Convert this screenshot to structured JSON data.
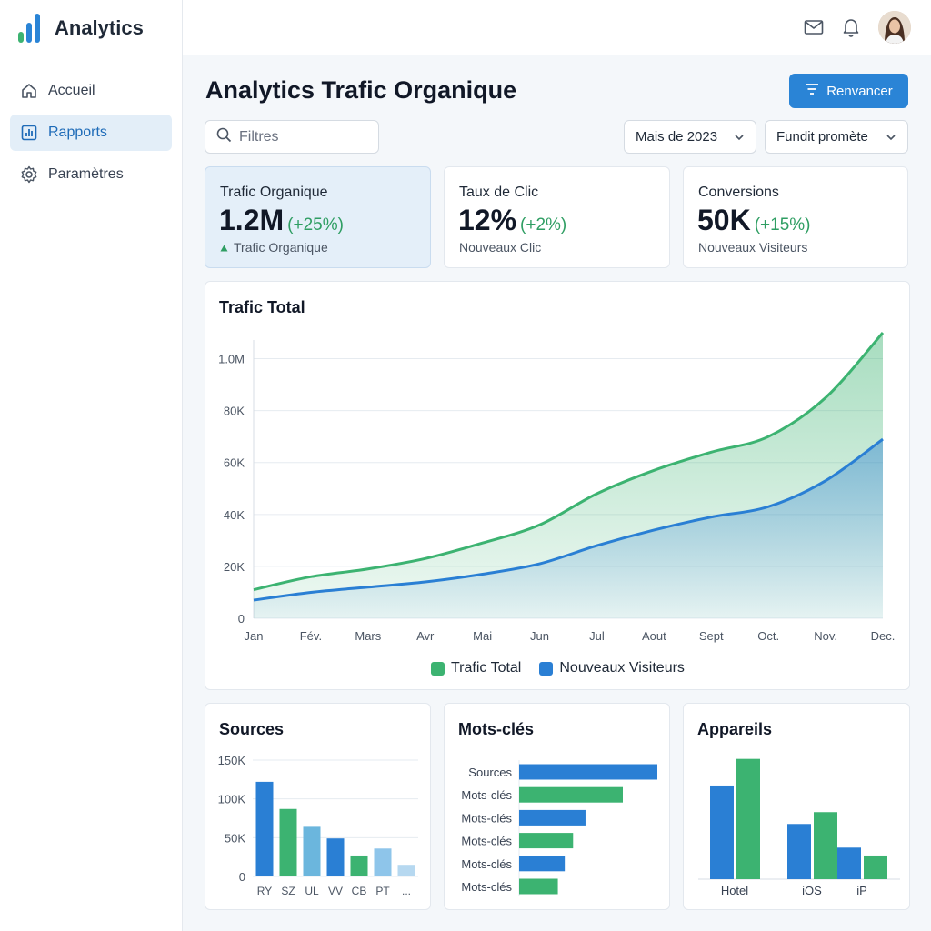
{
  "app": {
    "title": "Analytics"
  },
  "colors": {
    "accent": "#2a84d6",
    "green": "#3cb371",
    "blue": "#2a7fd4",
    "lightBlue": "#6bb6dd"
  },
  "sidebar": {
    "items": [
      {
        "label": "Accueil",
        "icon": "home-icon",
        "active": false
      },
      {
        "label": "Rapports",
        "icon": "bar-chart-icon",
        "active": true
      },
      {
        "label": "Paramètres",
        "icon": "gear-icon",
        "active": false
      }
    ]
  },
  "topbar": {
    "icons": [
      "mail-icon",
      "bell-icon"
    ],
    "avatar": "user-avatar"
  },
  "page": {
    "title": "Analytics Trafic Organique",
    "action_label": "Renvancer"
  },
  "filters": {
    "search_placeholder": "Filtres",
    "month_select": "Mais de 2023",
    "second_select": "Fundit promète"
  },
  "kpis": [
    {
      "label": "Trafic Organique",
      "value": "1.2M",
      "change": "(+25%)",
      "sub": "Trafic Organique",
      "highlight": true
    },
    {
      "label": "Taux de Clic",
      "value": "12%",
      "change": "(+2%)",
      "sub": "Nouveaux Clic",
      "highlight": false
    },
    {
      "label": "Conversions",
      "value": "50K",
      "change": "(+15%)",
      "sub": "Nouveaux Visiteurs",
      "highlight": false
    }
  ],
  "traffic": {
    "title": "Trafic Total"
  },
  "sources": {
    "title": "Sources"
  },
  "keywords": {
    "title": "Mots-clés"
  },
  "devices": {
    "title": "Appareils"
  },
  "chart_data": [
    {
      "type": "area",
      "title": "Trafic Total",
      "x": [
        "Jan",
        "Fév.",
        "Mars",
        "Avr",
        "Mai",
        "Jun",
        "Jul",
        "Aout",
        "Sept",
        "Oct.",
        "Nov.",
        "Dec."
      ],
      "y_ticks": [
        "0",
        "20K",
        "40K",
        "60K",
        "80K",
        "1.0M"
      ],
      "ylim": [
        0,
        110
      ],
      "grid": true,
      "legend": "bottom",
      "series": [
        {
          "name": "Trafic Total",
          "values": [
            11,
            16,
            19,
            23,
            29,
            36,
            48,
            57,
            64,
            70,
            85,
            110
          ]
        },
        {
          "name": "Nouveaux Visiteurs",
          "values": [
            7,
            10,
            12,
            14,
            17,
            21,
            28,
            34,
            39,
            43,
            53,
            69
          ]
        }
      ]
    },
    {
      "type": "bar",
      "title": "Sources",
      "categories": [
        "RY",
        "SZ",
        "UL",
        "VV",
        "CB",
        "PT",
        "..."
      ],
      "values": [
        122,
        87,
        64,
        49,
        27,
        36,
        15
      ],
      "colors": [
        "#2a7fd4",
        "#3cb371",
        "#6bb6dd",
        "#2a7fd4",
        "#3cb371",
        "#8ec5ea",
        "#b6d8f0"
      ],
      "y_ticks": [
        "0",
        "50K",
        "100K",
        "150K"
      ],
      "ylim": [
        0,
        150
      ],
      "grid": true
    },
    {
      "type": "bar",
      "title": "Mots-clés",
      "orientation": "horizontal",
      "categories": [
        "Sources",
        "Mots-clés",
        "Mots-clés",
        "Mots-clés",
        "Mots-clés",
        "Mots-clés"
      ],
      "values": [
        100,
        75,
        48,
        39,
        33,
        28
      ],
      "colors": [
        "#2a7fd4",
        "#3cb371",
        "#2a7fd4",
        "#3cb371",
        "#2a7fd4",
        "#3cb371"
      ],
      "xlim": [
        0,
        100
      ]
    },
    {
      "type": "bar",
      "title": "Appareils",
      "categories": [
        "Hotel",
        "iOS",
        "iP"
      ],
      "series": [
        {
          "values": [
            95,
            56,
            32
          ]
        },
        {
          "values": [
            122,
            68,
            24
          ]
        }
      ],
      "colors": [
        "#2a7fd4",
        "#3cb371"
      ],
      "ylim": [
        0,
        130
      ]
    }
  ]
}
